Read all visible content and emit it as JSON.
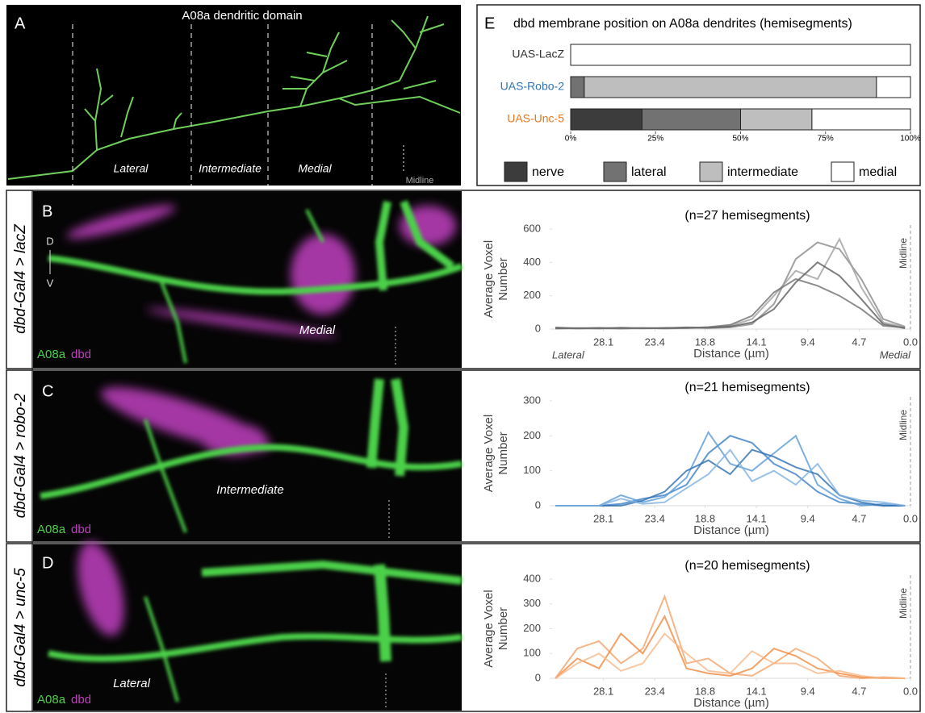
{
  "figure": {
    "panel_a": {
      "label": "A",
      "title": "A08a dendritic domain",
      "regions": [
        "Lateral",
        "Intermediate",
        "Medial"
      ],
      "midline": "Midline"
    },
    "rows": [
      {
        "label": "B",
        "genotype": "dbd-Gal4 > lacZ",
        "region": "Medial",
        "orientation": {
          "dorsal": "D",
          "ventral": "V"
        },
        "channel_green": "A08a",
        "channel_magenta": "dbd"
      },
      {
        "label": "C",
        "genotype": "dbd-Gal4 > robo-2",
        "region": "Intermediate",
        "channel_green": "A08a",
        "channel_magenta": "dbd"
      },
      {
        "label": "D",
        "genotype": "dbd-Gal4 > unc-5",
        "region": "Lateral",
        "channel_green": "A08a",
        "channel_magenta": "dbd"
      }
    ]
  },
  "chart_data": [
    {
      "type": "stacked-hbar",
      "label": "E",
      "title": "dbd membrane position on A08a dendrites (hemisegments)",
      "categories": [
        "UAS-LacZ",
        "UAS-Robo-2",
        "UAS-Unc-5"
      ],
      "category_colors": [
        "#333333",
        "#2e75b6",
        "#e8761c"
      ],
      "series": [
        {
          "name": "nerve",
          "color": "#3c3c3c",
          "values": [
            0,
            0,
            21
          ]
        },
        {
          "name": "lateral",
          "color": "#727272",
          "values": [
            0,
            4,
            29
          ]
        },
        {
          "name": "intermediate",
          "color": "#bebebe",
          "values": [
            0,
            86,
            21
          ]
        },
        {
          "name": "medial",
          "color": "#ffffff",
          "values": [
            100,
            10,
            29
          ]
        }
      ],
      "xlim": [
        0,
        100
      ],
      "xticks": [
        {
          "value": 0,
          "label": "0%"
        },
        {
          "value": 25,
          "label": "25%"
        },
        {
          "value": 50,
          "label": "50%"
        },
        {
          "value": 75,
          "label": "75%"
        },
        {
          "value": 100,
          "label": "100%"
        }
      ]
    },
    {
      "type": "line",
      "title": "(n=27 hemisegments)",
      "ylabel": [
        "Average Voxel",
        "Number"
      ],
      "xlabel": "Distance (µm)",
      "annotation": "Midline",
      "x_end_labels": [
        "Lateral",
        "Medial"
      ],
      "x": [
        32.5,
        30.5,
        28.5,
        26.5,
        24.5,
        22.5,
        20.5,
        18.5,
        16.5,
        14.5,
        12.5,
        10.5,
        8.5,
        6.5,
        4.5,
        2.5,
        0.5
      ],
      "xlim": [
        32.8,
        0
      ],
      "xticks": [
        28.1,
        23.4,
        18.8,
        14.1,
        9.4,
        4.7,
        {
          "value": 0,
          "label": "0.0"
        }
      ],
      "ylim": [
        0,
        600
      ],
      "yticks": [
        0,
        200,
        400,
        600
      ],
      "series": [
        {
          "color": "#8a8a8a",
          "values": [
            10,
            5,
            8,
            4,
            6,
            5,
            8,
            6,
            10,
            30,
            150,
            420,
            520,
            480,
            300,
            60,
            15
          ]
        },
        {
          "color": "#a0a0a0",
          "values": [
            5,
            3,
            6,
            5,
            4,
            8,
            5,
            10,
            20,
            60,
            200,
            350,
            300,
            540,
            250,
            40,
            10
          ]
        },
        {
          "color": "#5e5e5e",
          "values": [
            3,
            6,
            4,
            8,
            5,
            6,
            10,
            8,
            15,
            40,
            120,
            280,
            400,
            320,
            180,
            30,
            5
          ]
        },
        {
          "color": "#707070",
          "values": [
            8,
            4,
            5,
            3,
            7,
            4,
            6,
            12,
            25,
            80,
            220,
            300,
            260,
            200,
            120,
            20,
            8
          ]
        }
      ]
    },
    {
      "type": "line",
      "title": "(n=21 hemisegments)",
      "ylabel": [
        "Average Voxel",
        "Number"
      ],
      "xlabel": "Distance (µm)",
      "annotation": "Midline",
      "x": [
        32.5,
        30.5,
        28.5,
        26.5,
        24.5,
        22.5,
        20.5,
        18.5,
        16.5,
        14.5,
        12.5,
        10.5,
        8.5,
        6.5,
        4.5,
        2.5,
        0.5
      ],
      "xlim": [
        32.8,
        0
      ],
      "xticks": [
        28.1,
        23.4,
        18.8,
        14.1,
        9.4,
        4.7,
        {
          "value": 0,
          "label": "0.0"
        }
      ],
      "ylim": [
        0,
        300
      ],
      "yticks": [
        0,
        100,
        200,
        300
      ],
      "series": [
        {
          "color": "#3b7fc4",
          "values": [
            0,
            0,
            0,
            5,
            20,
            30,
            60,
            150,
            200,
            180,
            120,
            90,
            40,
            10,
            5,
            0,
            0
          ]
        },
        {
          "color": "#5b9bd5",
          "values": [
            0,
            0,
            0,
            30,
            10,
            25,
            80,
            210,
            120,
            100,
            150,
            200,
            60,
            20,
            0,
            5,
            0
          ]
        },
        {
          "color": "#2e6fb2",
          "values": [
            0,
            0,
            0,
            0,
            15,
            40,
            100,
            130,
            90,
            160,
            140,
            110,
            90,
            30,
            10,
            0,
            0
          ]
        },
        {
          "color": "#7fb2e0",
          "values": [
            0,
            0,
            0,
            20,
            5,
            10,
            50,
            90,
            160,
            70,
            100,
            60,
            120,
            30,
            15,
            10,
            0
          ]
        }
      ]
    },
    {
      "type": "line",
      "title": "(n=20 hemisegments)",
      "ylabel": [
        "Average Voxel",
        "Number"
      ],
      "xlabel": "Distance (µm)",
      "annotation": "Midline",
      "x": [
        32.5,
        30.5,
        28.5,
        26.5,
        24.5,
        22.5,
        20.5,
        18.5,
        16.5,
        14.5,
        12.5,
        10.5,
        8.5,
        6.5,
        4.5,
        2.5,
        0.5
      ],
      "xlim": [
        32.8,
        0
      ],
      "xticks": [
        28.1,
        23.4,
        18.8,
        14.1,
        9.4,
        4.7,
        {
          "value": 0,
          "label": "0.0"
        }
      ],
      "ylim": [
        0,
        400
      ],
      "yticks": [
        0,
        100,
        200,
        300,
        400
      ],
      "series": [
        {
          "color": "#f4a26a",
          "values": [
            0,
            120,
            150,
            60,
            120,
            330,
            60,
            80,
            20,
            10,
            60,
            120,
            80,
            10,
            0,
            5,
            0
          ]
        },
        {
          "color": "#f08a40",
          "values": [
            0,
            80,
            40,
            180,
            100,
            250,
            40,
            20,
            10,
            40,
            120,
            90,
            40,
            20,
            5,
            0,
            0
          ]
        },
        {
          "color": "#f7b98a",
          "values": [
            0,
            60,
            100,
            30,
            60,
            180,
            100,
            30,
            20,
            110,
            60,
            60,
            20,
            30,
            10,
            0,
            0
          ]
        }
      ]
    }
  ]
}
